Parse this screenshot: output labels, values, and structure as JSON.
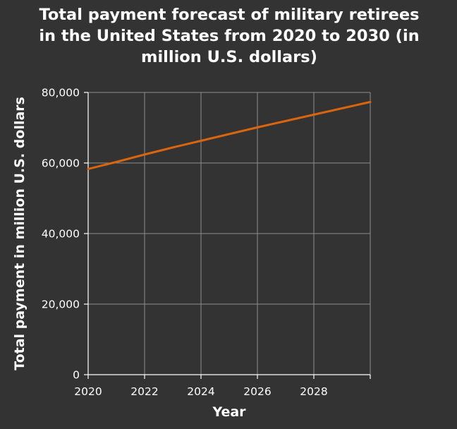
{
  "chart_data": {
    "type": "line",
    "title_lines": [
      "Total payment forecast of military retirees",
      "in the United States from 2020 to 2030 (in",
      "million U.S. dollars)"
    ],
    "xlabel": "Year",
    "ylabel": "Total payment in million U.S. dollars",
    "x_ticks": [
      2020,
      2022,
      2024,
      2026,
      2028
    ],
    "x_tick_labels": [
      "2020",
      "2022",
      "2024",
      "2026",
      "2028"
    ],
    "y_ticks": [
      0,
      20000,
      40000,
      60000,
      80000
    ],
    "y_tick_labels": [
      "0",
      "20,000",
      "40,000",
      "60,000",
      "80,000"
    ],
    "xlim": [
      2020,
      2030
    ],
    "ylim": [
      0,
      80000
    ],
    "grid": true,
    "series": [
      {
        "color": "#d9650f",
        "x": [
          2020,
          2021,
          2022,
          2023,
          2024,
          2025,
          2026,
          2027,
          2028,
          2029,
          2030
        ],
        "values": [
          58300,
          60300,
          62400,
          64400,
          66300,
          68200,
          70100,
          71900,
          73700,
          75500,
          77300
        ]
      }
    ],
    "colors": {
      "background": "#333333",
      "grid": "#8c8c8c",
      "axis": "#ffffff",
      "text": "#ffffff"
    }
  }
}
